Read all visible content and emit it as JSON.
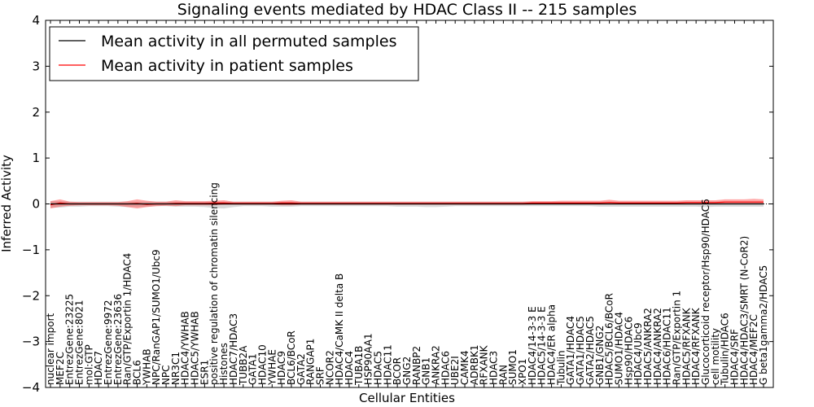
{
  "chart_data": {
    "type": "line",
    "title": "Signaling events mediated by HDAC Class II -- 215 samples",
    "xlabel": "Cellular Entities",
    "ylabel": "Inferred Activity",
    "ylim": [
      -4,
      4
    ],
    "yticks": [
      "4",
      "3",
      "2",
      "1",
      "0",
      "−1",
      "−2",
      "−3",
      "−4"
    ],
    "ytick_values": [
      4,
      3,
      2,
      1,
      0,
      -1,
      -2,
      -3,
      -4
    ],
    "legend": {
      "position": "top-left",
      "entries": [
        {
          "label": "Mean activity in all permuted samples",
          "color": "#000000"
        },
        {
          "label": "Mean activity in patient samples",
          "color": "#ff0000"
        }
      ]
    },
    "categories": [
      "nuclear import",
      "MEF2C",
      "EntrezGene:23225",
      "EntrezGene:8021",
      "mol:GTP",
      "HDAC7",
      "EntrezGene:9972",
      "EntrezGene:23636",
      "Ran/GTP/Exportin 1/HDAC4",
      "BCL6",
      "YWHAB",
      "NPC/RanGAP1/SUMO1/Ubc9",
      "NPC",
      "NR3C1",
      "HDAC4/YWHAB",
      "HDAC5/YWHAB",
      "ESR1",
      "positive regulation of chromatin silencing",
      "Histones",
      "HDAC7/HDAC3",
      "TUBB2A",
      "GATA1",
      "HDAC10",
      "YWHAE",
      "HDAC9",
      "BCL6/BCoR",
      "GATA2",
      "RANGAP1",
      "SRF",
      "NCOR2",
      "HDAC4/CaMK II delta B",
      "HDAC4",
      "TUBA1B",
      "HSP90AA1",
      "HDAC5",
      "HDAC11",
      "BCOR",
      "GNG2",
      "RANBP2",
      "GNB1",
      "ANKRA2",
      "HDAC6",
      "UBE2I",
      "CAMK4",
      "ADRBK1",
      "RFXANK",
      "HDAC3",
      "RAN",
      "SUMO1",
      "XPO1",
      "HDAC4/14-3-3 E",
      "HDAC5/14-3-3 E",
      "HDAC4/ER alpha",
      "Tubulin",
      "GATA1/HDAC4",
      "GATA1/HDAC5",
      "GATA2/HDAC5",
      "GNB1/GNG2",
      "HDAC5/BCL6/BCoR",
      "SUMO1/HDAC4",
      "Hsp90/HDAC6",
      "HDAC4/Ubc9",
      "HDAC5/ANKRA2",
      "HDAC4/ANKRA2",
      "HDAC6/HDAC11",
      "Ran/GTP/Exportin 1",
      "HDAC5/RFXANK",
      "HDAC4/RFXANK",
      "Glucocorticoid receptor/Hsp90/HDAC6",
      "cell motility",
      "Tubulin/HDAC6",
      "HDAC4/SRF",
      "HDAC4/HDAC3/SMRT (N-CoR2)",
      "HDAC4/MEF2C",
      "G beta1gamma2/HDAC5"
    ],
    "series": [
      {
        "name": "Mean activity in all permuted samples",
        "color": "#000000",
        "values": [
          0.0,
          0.0,
          0.0,
          0.0,
          0.0,
          0.0,
          0.0,
          0.0,
          0.0,
          0.0,
          0.0,
          0.0,
          0.0,
          0.0,
          0.0,
          0.0,
          0.0,
          0.0,
          0.0,
          0.0,
          0.0,
          0.0,
          0.0,
          0.0,
          0.0,
          0.0,
          0.0,
          0.0,
          0.0,
          0.0,
          0.0,
          0.0,
          0.0,
          0.0,
          0.0,
          0.0,
          0.0,
          0.0,
          0.0,
          0.0,
          0.0,
          0.0,
          0.0,
          0.0,
          0.0,
          0.0,
          0.0,
          0.0,
          0.0,
          0.0,
          0.0,
          0.0,
          0.0,
          0.0,
          0.0,
          0.0,
          0.0,
          0.0,
          0.0,
          0.0,
          0.0,
          0.0,
          0.0,
          0.0,
          0.0,
          0.0,
          0.0,
          0.0,
          0.0,
          0.0,
          0.0,
          0.0,
          0.0,
          0.0,
          0.0
        ],
        "band_low": [
          -0.08,
          -0.08,
          -0.06,
          -0.06,
          -0.05,
          -0.05,
          -0.05,
          -0.06,
          -0.07,
          -0.07,
          -0.06,
          -0.05,
          -0.05,
          -0.06,
          -0.06,
          -0.06,
          -0.07,
          -0.09,
          -0.1,
          -0.07,
          -0.05,
          -0.05,
          -0.05,
          -0.06,
          -0.06,
          -0.06,
          -0.05,
          -0.05,
          -0.05,
          -0.05,
          -0.05,
          -0.05,
          -0.05,
          -0.05,
          -0.05,
          -0.05,
          -0.06,
          -0.06,
          -0.06,
          -0.07,
          -0.07,
          -0.06,
          -0.05,
          -0.05,
          -0.05,
          -0.05,
          -0.05,
          -0.05,
          -0.05,
          -0.05,
          -0.05,
          -0.05,
          -0.05,
          -0.05,
          -0.05,
          -0.05,
          -0.05,
          -0.06,
          -0.06,
          -0.06,
          -0.06,
          -0.06,
          -0.06,
          -0.06,
          -0.06,
          -0.06,
          -0.06,
          -0.06,
          -0.07,
          -0.06,
          -0.06,
          -0.06,
          -0.06,
          -0.06,
          -0.06
        ],
        "band_high": [
          0.06,
          0.06,
          0.05,
          0.05,
          0.05,
          0.05,
          0.05,
          0.05,
          0.05,
          0.05,
          0.05,
          0.05,
          0.05,
          0.05,
          0.05,
          0.05,
          0.05,
          0.05,
          0.05,
          0.05,
          0.05,
          0.05,
          0.05,
          0.05,
          0.05,
          0.05,
          0.05,
          0.05,
          0.05,
          0.05,
          0.05,
          0.05,
          0.05,
          0.05,
          0.05,
          0.05,
          0.05,
          0.05,
          0.05,
          0.05,
          0.05,
          0.05,
          0.05,
          0.05,
          0.05,
          0.05,
          0.05,
          0.05,
          0.05,
          0.05,
          0.05,
          0.05,
          0.05,
          0.05,
          0.05,
          0.05,
          0.05,
          0.05,
          0.05,
          0.05,
          0.05,
          0.05,
          0.05,
          0.05,
          0.05,
          0.05,
          0.05,
          0.05,
          0.05,
          0.05,
          0.05,
          0.05,
          0.05,
          0.05,
          0.05
        ]
      },
      {
        "name": "Mean activity in patient samples",
        "color": "#ff0000",
        "values": [
          -0.02,
          0.02,
          0.0,
          0.0,
          0.0,
          0.0,
          0.0,
          0.0,
          0.0,
          0.01,
          -0.01,
          0.0,
          0.0,
          0.01,
          0.01,
          0.01,
          0.01,
          0.02,
          0.02,
          0.01,
          0.01,
          0.01,
          0.01,
          0.01,
          0.02,
          0.02,
          0.01,
          0.01,
          0.01,
          0.01,
          0.01,
          0.01,
          0.01,
          0.01,
          0.01,
          0.01,
          0.01,
          0.01,
          0.01,
          0.01,
          0.01,
          0.01,
          0.01,
          0.01,
          0.01,
          0.01,
          0.01,
          0.01,
          0.01,
          0.01,
          0.02,
          0.02,
          0.02,
          0.02,
          0.02,
          0.02,
          0.02,
          0.02,
          0.03,
          0.02,
          0.02,
          0.02,
          0.02,
          0.02,
          0.02,
          0.02,
          0.03,
          0.03,
          0.03,
          0.03,
          0.04,
          0.04,
          0.04,
          0.04,
          0.04
        ],
        "band_low": [
          -0.1,
          -0.06,
          -0.04,
          -0.03,
          -0.03,
          -0.03,
          -0.03,
          -0.04,
          -0.07,
          -0.1,
          -0.07,
          -0.05,
          -0.04,
          -0.05,
          -0.03,
          -0.03,
          -0.03,
          -0.03,
          -0.02,
          -0.02,
          -0.02,
          -0.02,
          -0.02,
          -0.02,
          -0.03,
          -0.03,
          -0.02,
          -0.02,
          -0.02,
          -0.02,
          -0.02,
          -0.02,
          -0.02,
          -0.02,
          -0.02,
          -0.02,
          -0.02,
          -0.02,
          -0.02,
          -0.02,
          -0.02,
          -0.02,
          -0.02,
          -0.02,
          -0.02,
          -0.02,
          -0.02,
          -0.02,
          -0.02,
          -0.02,
          -0.01,
          -0.01,
          -0.01,
          -0.01,
          -0.01,
          -0.01,
          -0.01,
          -0.01,
          -0.01,
          -0.01,
          -0.01,
          -0.01,
          -0.01,
          -0.01,
          -0.01,
          -0.01,
          -0.01,
          -0.01,
          -0.01,
          0.0,
          0.0,
          0.0,
          0.0,
          0.0,
          0.0
        ],
        "band_high": [
          0.06,
          0.1,
          0.05,
          0.04,
          0.04,
          0.04,
          0.04,
          0.04,
          0.06,
          0.1,
          0.07,
          0.05,
          0.05,
          0.08,
          0.06,
          0.06,
          0.06,
          0.07,
          0.08,
          0.05,
          0.05,
          0.05,
          0.05,
          0.05,
          0.07,
          0.08,
          0.05,
          0.05,
          0.05,
          0.05,
          0.05,
          0.05,
          0.05,
          0.05,
          0.05,
          0.05,
          0.05,
          0.05,
          0.05,
          0.05,
          0.05,
          0.05,
          0.05,
          0.05,
          0.05,
          0.05,
          0.05,
          0.05,
          0.05,
          0.05,
          0.06,
          0.06,
          0.06,
          0.07,
          0.07,
          0.07,
          0.07,
          0.07,
          0.09,
          0.07,
          0.07,
          0.07,
          0.07,
          0.07,
          0.07,
          0.07,
          0.08,
          0.08,
          0.08,
          0.08,
          0.1,
          0.1,
          0.1,
          0.11,
          0.1
        ]
      }
    ]
  }
}
